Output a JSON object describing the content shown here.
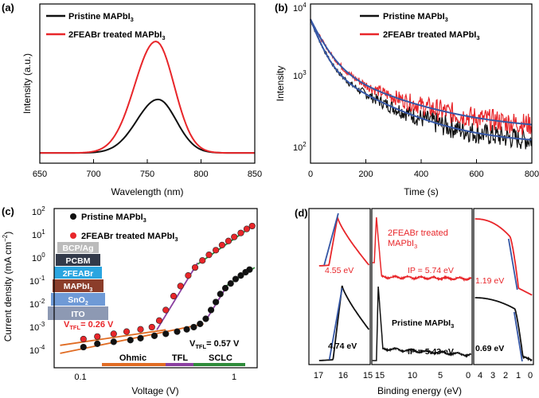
{
  "colors": {
    "black": "#111111",
    "red": "#e8262a",
    "blue": "#3557a6",
    "green": "#2e8b3a",
    "purple": "#8a3fa0",
    "orange": "#e06b22"
  },
  "chart_data": [
    {
      "panel": "(a)",
      "type": "line",
      "xlabel": "Wavelength (nm)",
      "ylabel": "Intensity (a.u.)",
      "xlim": [
        650,
        850
      ],
      "xticks": [
        650,
        700,
        750,
        800,
        850
      ],
      "legend": [
        "Pristine MAPbI",
        "2FEABr treated MAPbI"
      ],
      "series": [
        {
          "name": "Pristine MAPbI3",
          "peak_nm": 760,
          "peak_rel": 0.48,
          "color": "black"
        },
        {
          "name": "2FEABr treated MAPbI3",
          "peak_nm": 758,
          "peak_rel": 1.0,
          "color": "red"
        }
      ]
    },
    {
      "panel": "(b)",
      "type": "line",
      "yscale": "log",
      "xlabel": "Time (s)",
      "ylabel": "Intensity",
      "xlim": [
        0,
        800
      ],
      "xticks": [
        0,
        200,
        400,
        600,
        800
      ],
      "ylim": [
        50,
        10000
      ],
      "ytick_exps": [
        "2",
        "3",
        "4"
      ],
      "legend": [
        "Pristine MAPbI",
        "2FEABr treated MAPbI"
      ],
      "series": [
        {
          "name": "Pristine MAPbI3",
          "start": 6000,
          "tail": 95,
          "color": "black"
        },
        {
          "name": "2FEABr treated MAPbI3",
          "start": 6000,
          "tail": 150,
          "color": "red"
        }
      ]
    },
    {
      "panel": "(c)",
      "type": "scatter",
      "xscale": "log",
      "yscale": "log",
      "xlabel": "Voltage (V)",
      "ylabel": "Current density (mA cm",
      "xlim": [
        0.05,
        1.3
      ],
      "ylim": [
        0.0001,
        100
      ],
      "ytick_exps": [
        "-4",
        "-3",
        "-2",
        "-1",
        "0",
        "1",
        "2"
      ],
      "xtick_labels": [
        "0.1",
        "1"
      ],
      "legend": [
        "Pristine MAPbI",
        "2FEABr treated MAPbI"
      ],
      "vtfl_red": "V",
      "vtfl_red_value": "= 0.26 V",
      "vtfl_black": "V",
      "vtfl_black_value": "= 0.57 V",
      "regions": [
        "Ohmic",
        "TFL",
        "SCLC"
      ],
      "stack": [
        "BCP/Ag",
        "PCBM",
        "2FEABr",
        "MAPbI",
        "SnO",
        "ITO"
      ],
      "series": [
        {
          "name": "Pristine MAPbI3",
          "color": "black",
          "x": [
            0.08,
            0.1,
            0.13,
            0.17,
            0.2,
            0.25,
            0.3,
            0.36,
            0.42,
            0.47,
            0.52,
            0.57,
            0.62,
            0.67,
            0.72,
            0.78,
            0.85,
            0.92,
            1.0,
            1.08,
            1.15
          ],
          "y": [
            0.0006,
            0.0008,
            0.00095,
            0.0011,
            0.0013,
            0.0016,
            0.0019,
            0.0023,
            0.0028,
            0.0034,
            0.0045,
            0.007,
            0.015,
            0.03,
            0.06,
            0.1,
            0.15,
            0.22,
            0.3,
            0.4,
            0.5
          ]
        },
        {
          "name": "2FEABr treated MAPbI3",
          "color": "red",
          "x": [
            0.08,
            0.1,
            0.13,
            0.16,
            0.2,
            0.24,
            0.27,
            0.3,
            0.34,
            0.38,
            0.43,
            0.48,
            0.54,
            0.6,
            0.67,
            0.74,
            0.82,
            0.9,
            1.0,
            1.1,
            1.2
          ],
          "y": [
            0.0012,
            0.0015,
            0.0019,
            0.0023,
            0.0028,
            0.0034,
            0.006,
            0.015,
            0.05,
            0.12,
            0.3,
            0.6,
            1.1,
            1.8,
            2.7,
            4.2,
            6,
            8.5,
            12,
            17,
            22
          ]
        }
      ]
    },
    {
      "panel": "(d)",
      "type": "line",
      "xlabel": "Binding energy (eV)",
      "sub1_ticks": [
        "17",
        "16",
        "15"
      ],
      "sub2_ticks": [
        "15",
        "10",
        "5",
        "0"
      ],
      "sub3_ticks": [
        "4",
        "3",
        "2",
        "1",
        "0"
      ],
      "red_label_l1": "2FEABr treated",
      "red_label_l2": "MAPbI",
      "black_label": "Pristine MAPbI",
      "ip_red": "IP = 5.74 eV",
      "ip_black": "IP = 5.43 eV",
      "cutoff_red": "4.55 eV",
      "cutoff_black": "4.74 eV",
      "vb_red": "1.19 eV",
      "vb_black": "0.69 eV"
    }
  ]
}
